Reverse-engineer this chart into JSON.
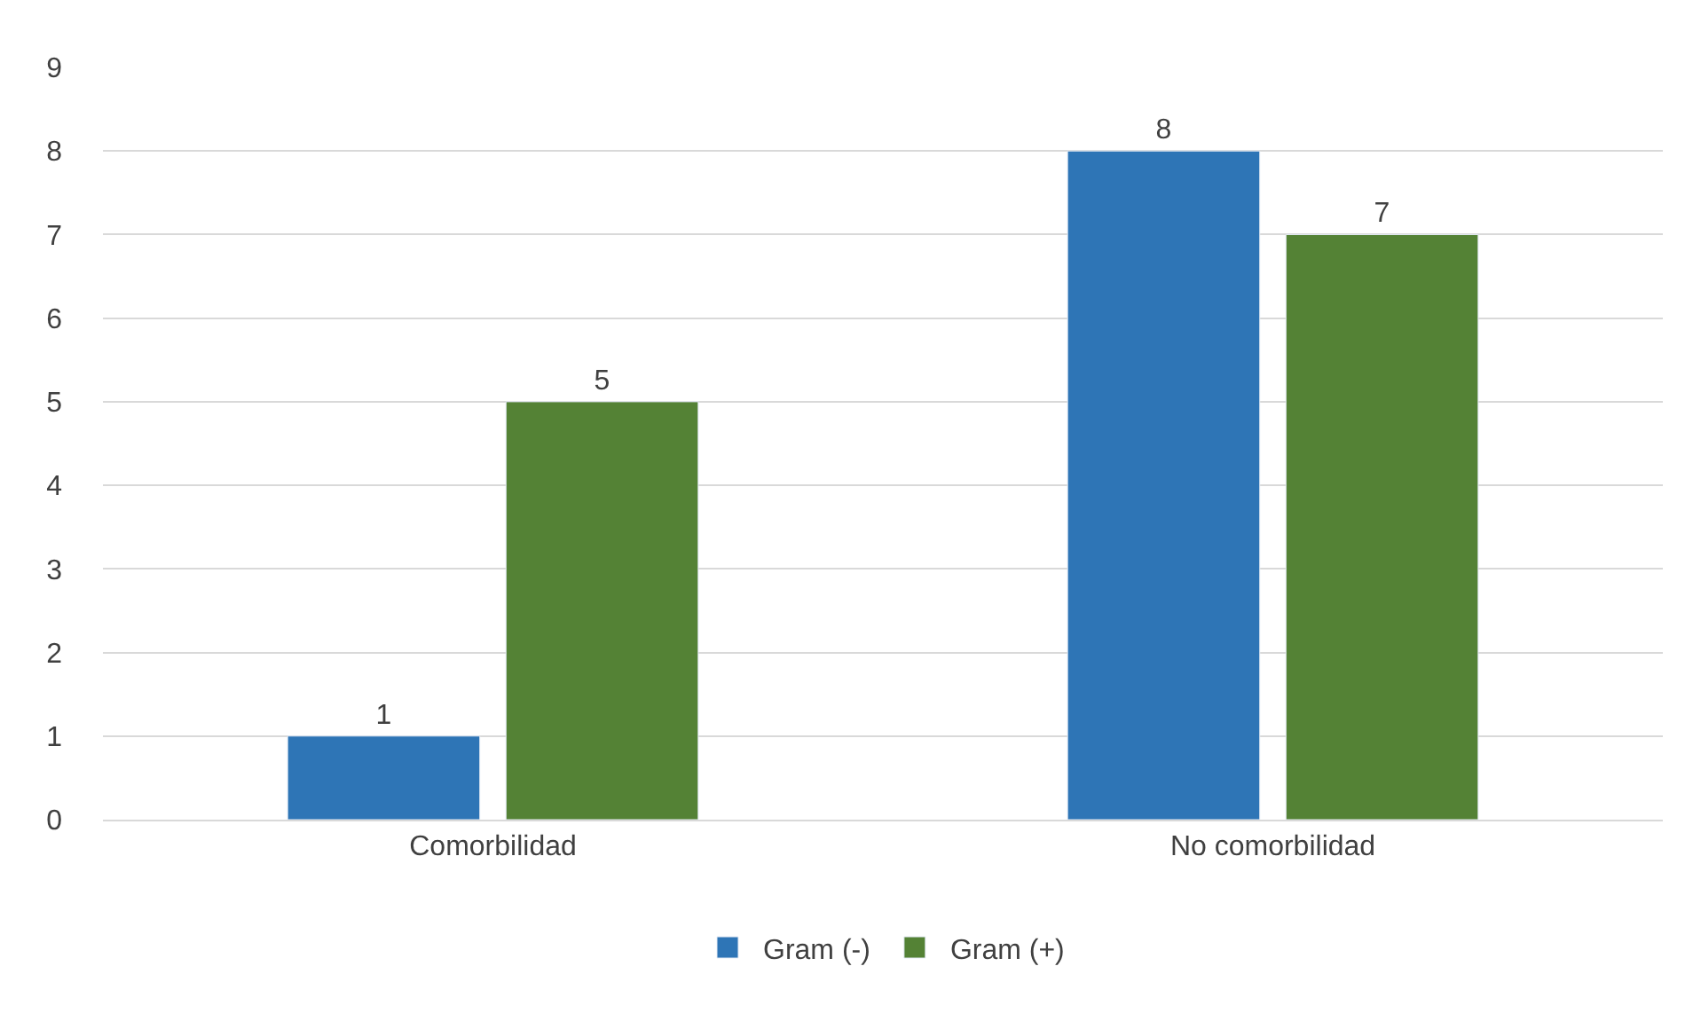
{
  "chart_data": {
    "type": "bar",
    "categories": [
      "Comorbilidad",
      "No comorbilidad"
    ],
    "series": [
      {
        "name": "Gram (-)",
        "color": "#2e75b6",
        "values": [
          1,
          8
        ]
      },
      {
        "name": "Gram (+)",
        "color": "#548235",
        "values": [
          5,
          7
        ]
      }
    ],
    "ylim": [
      0,
      9
    ],
    "yticks": [
      0,
      1,
      2,
      3,
      4,
      5,
      6,
      7,
      8,
      9
    ],
    "grid": "y",
    "legend": "bottom",
    "data_labels": true
  }
}
